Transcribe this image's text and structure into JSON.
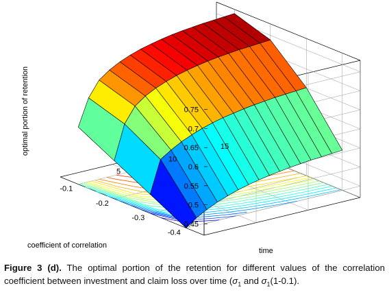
{
  "chart_data": {
    "type": "surface3d",
    "zlabel": "optimal portion of retention",
    "xlabel": "coefficient of correlation",
    "ylabel": "time",
    "z_ticks": [
      "0.75",
      "0.7",
      "0.65",
      "0.6",
      "0.55",
      "0.5",
      "0.45"
    ],
    "x_ticks": [
      "-0.1",
      "-0.2",
      "-0.3",
      "-0.4"
    ],
    "y_ticks": [
      "5",
      "10",
      "15"
    ],
    "zlim": [
      0.42,
      0.78
    ],
    "xlim": [
      -0.45,
      -0.05
    ],
    "ylim": [
      0,
      15
    ],
    "grid": true,
    "colormap": "jet",
    "contour_projection": true,
    "surface": {
      "rho": [
        -0.4,
        -0.3,
        -0.2,
        -0.1
      ],
      "time": [
        0,
        1,
        2,
        3,
        4,
        5,
        6,
        7,
        8,
        9,
        10,
        11,
        12,
        13,
        14,
        15
      ],
      "retention": [
        [
          0.42,
          0.44,
          0.455,
          0.468,
          0.478,
          0.487,
          0.494,
          0.5,
          0.505,
          0.509,
          0.513,
          0.516,
          0.519,
          0.521,
          0.523,
          0.525
        ],
        [
          0.47,
          0.555,
          0.573,
          0.588,
          0.6,
          0.61,
          0.618,
          0.625,
          0.63,
          0.635,
          0.639,
          0.642,
          0.645,
          0.647,
          0.649,
          0.651
        ],
        [
          0.52,
          0.61,
          0.65,
          0.67,
          0.684,
          0.695,
          0.704,
          0.711,
          0.717,
          0.722,
          0.726,
          0.729,
          0.732,
          0.734,
          0.736,
          0.738
        ],
        [
          0.57,
          0.64,
          0.68,
          0.7,
          0.715,
          0.726,
          0.735,
          0.742,
          0.748,
          0.753,
          0.757,
          0.76,
          0.763,
          0.765,
          0.767,
          0.769
        ]
      ]
    }
  },
  "caption": {
    "label": "Figure 3 (d).",
    "text_before": " The optimal portion of the retention for different values of the correlation coefficient between investment and claim loss over time (",
    "sigma1": "σ",
    "sub1": "1",
    "text_mid": " and ",
    "sigma2": "σ",
    "sub2": "1",
    "text_after": "(1-0.1)."
  }
}
